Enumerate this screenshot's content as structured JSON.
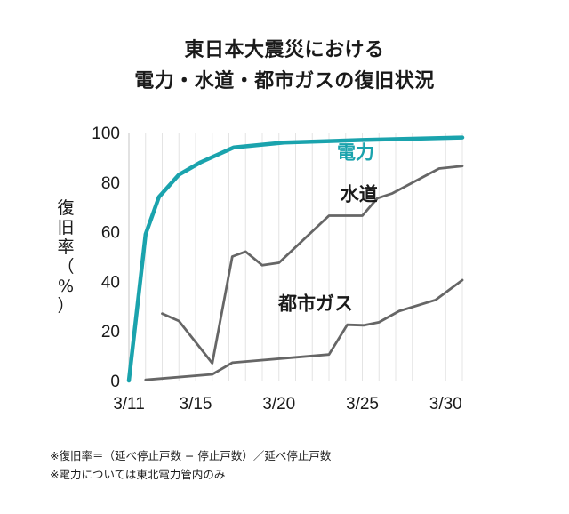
{
  "title_line1": "東日本大震災における",
  "title_line2": "電力・水道・都市ガスの復旧状況",
  "notes": [
    "※復旧率＝（延べ停止戸数 − 停止戸数）／延べ停止戸数",
    "※電力については東北電力管内のみ"
  ],
  "chart_data": {
    "type": "line",
    "title": "東日本大震災における 電力・水道・都市ガスの復旧状況",
    "ylabel": "復旧率（%）",
    "xlabel": "",
    "xlim": [
      11,
      31
    ],
    "ylim": [
      0,
      100
    ],
    "x_ticks": [
      {
        "value": 11,
        "label": "3/11"
      },
      {
        "value": 15,
        "label": "3/15"
      },
      {
        "value": 20,
        "label": "3/20"
      },
      {
        "value": 25,
        "label": "3/25"
      },
      {
        "value": 30,
        "label": "3/30"
      }
    ],
    "y_ticks": [
      0,
      20,
      40,
      60,
      80,
      100
    ],
    "grid": "vertical",
    "series": [
      {
        "name": "電力",
        "color": "#1aa3ad",
        "points": [
          [
            11,
            0
          ],
          [
            12,
            59
          ],
          [
            12.8,
            74
          ],
          [
            14,
            83
          ],
          [
            15.3,
            88
          ],
          [
            17.3,
            94
          ],
          [
            20.3,
            96
          ],
          [
            25,
            97
          ],
          [
            31,
            98
          ]
        ]
      },
      {
        "name": "水道",
        "color": "#666666",
        "points": [
          [
            13,
            27
          ],
          [
            14,
            24
          ],
          [
            16,
            7
          ],
          [
            17.2,
            50
          ],
          [
            18,
            52
          ],
          [
            19,
            46.5
          ],
          [
            20,
            47.5
          ],
          [
            23,
            66.5
          ],
          [
            25,
            66.5
          ],
          [
            25.9,
            73.5
          ],
          [
            26.8,
            75.5
          ],
          [
            29.6,
            85.5
          ],
          [
            31,
            86.5
          ]
        ]
      },
      {
        "name": "都市ガス",
        "color": "#666666",
        "points": [
          [
            12,
            0.3
          ],
          [
            16,
            2.5
          ],
          [
            17.2,
            7.2
          ],
          [
            23,
            10.5
          ],
          [
            24.1,
            22.5
          ],
          [
            25.1,
            22.3
          ],
          [
            26,
            23.5
          ],
          [
            27.2,
            28
          ],
          [
            29.4,
            32.5
          ],
          [
            31,
            40.5
          ]
        ]
      }
    ]
  }
}
